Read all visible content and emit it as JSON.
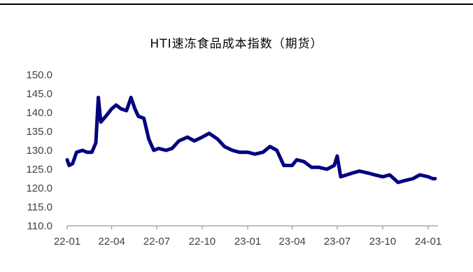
{
  "chart_data": {
    "type": "line",
    "title": "HTI速冻食品成本指数（期货）",
    "xlabel": "",
    "ylabel": "",
    "ylim": [
      110,
      150
    ],
    "yticks": [
      "110.0",
      "115.0",
      "120.0",
      "125.0",
      "130.0",
      "135.0",
      "140.0",
      "145.0",
      "150.0"
    ],
    "xticks": [
      "22-01",
      "22-04",
      "22-07",
      "22-10",
      "23-01",
      "23-04",
      "23-07",
      "23-10",
      "24-01"
    ],
    "grid": false,
    "legend": "none",
    "series": [
      {
        "color": "#000080",
        "points": [
          [
            "2022-01-01",
            127.5
          ],
          [
            "2022-01-05",
            126.0
          ],
          [
            "2022-01-12",
            126.5
          ],
          [
            "2022-01-20",
            129.5
          ],
          [
            "2022-02-01",
            130.0
          ],
          [
            "2022-02-10",
            129.5
          ],
          [
            "2022-02-20",
            129.5
          ],
          [
            "2022-02-28",
            132.0
          ],
          [
            "2022-03-05",
            144.0
          ],
          [
            "2022-03-10",
            137.5
          ],
          [
            "2022-03-20",
            139.0
          ],
          [
            "2022-04-01",
            141.0
          ],
          [
            "2022-04-10",
            142.0
          ],
          [
            "2022-04-20",
            141.0
          ],
          [
            "2022-05-01",
            140.5
          ],
          [
            "2022-05-10",
            144.0
          ],
          [
            "2022-05-18",
            141.0
          ],
          [
            "2022-05-25",
            139.0
          ],
          [
            "2022-06-05",
            138.5
          ],
          [
            "2022-06-15",
            133.0
          ],
          [
            "2022-06-25",
            130.0
          ],
          [
            "2022-07-05",
            130.5
          ],
          [
            "2022-07-20",
            130.0
          ],
          [
            "2022-08-01",
            130.5
          ],
          [
            "2022-08-15",
            132.5
          ],
          [
            "2022-09-01",
            133.5
          ],
          [
            "2022-09-15",
            132.5
          ],
          [
            "2022-10-01",
            133.5
          ],
          [
            "2022-10-15",
            134.5
          ],
          [
            "2022-11-01",
            133.0
          ],
          [
            "2022-11-15",
            131.0
          ],
          [
            "2022-12-01",
            130.0
          ],
          [
            "2022-12-15",
            129.5
          ],
          [
            "2023-01-01",
            129.5
          ],
          [
            "2023-01-15",
            129.0
          ],
          [
            "2023-02-01",
            129.5
          ],
          [
            "2023-02-15",
            131.0
          ],
          [
            "2023-03-01",
            130.0
          ],
          [
            "2023-03-15",
            126.0
          ],
          [
            "2023-04-01",
            126.0
          ],
          [
            "2023-04-10",
            127.5
          ],
          [
            "2023-04-25",
            127.0
          ],
          [
            "2023-05-10",
            125.5
          ],
          [
            "2023-05-25",
            125.5
          ],
          [
            "2023-06-10",
            125.0
          ],
          [
            "2023-06-25",
            126.0
          ],
          [
            "2023-07-01",
            128.5
          ],
          [
            "2023-07-08",
            123.0
          ],
          [
            "2023-07-20",
            123.5
          ],
          [
            "2023-08-01",
            124.0
          ],
          [
            "2023-08-15",
            124.5
          ],
          [
            "2023-09-01",
            124.0
          ],
          [
            "2023-09-15",
            123.5
          ],
          [
            "2023-10-01",
            123.0
          ],
          [
            "2023-10-15",
            123.5
          ],
          [
            "2023-11-01",
            121.5
          ],
          [
            "2023-11-15",
            122.0
          ],
          [
            "2023-12-01",
            122.5
          ],
          [
            "2023-12-15",
            123.5
          ],
          [
            "2024-01-01",
            123.0
          ],
          [
            "2024-01-10",
            122.5
          ],
          [
            "2024-01-15",
            122.5
          ]
        ]
      }
    ]
  }
}
